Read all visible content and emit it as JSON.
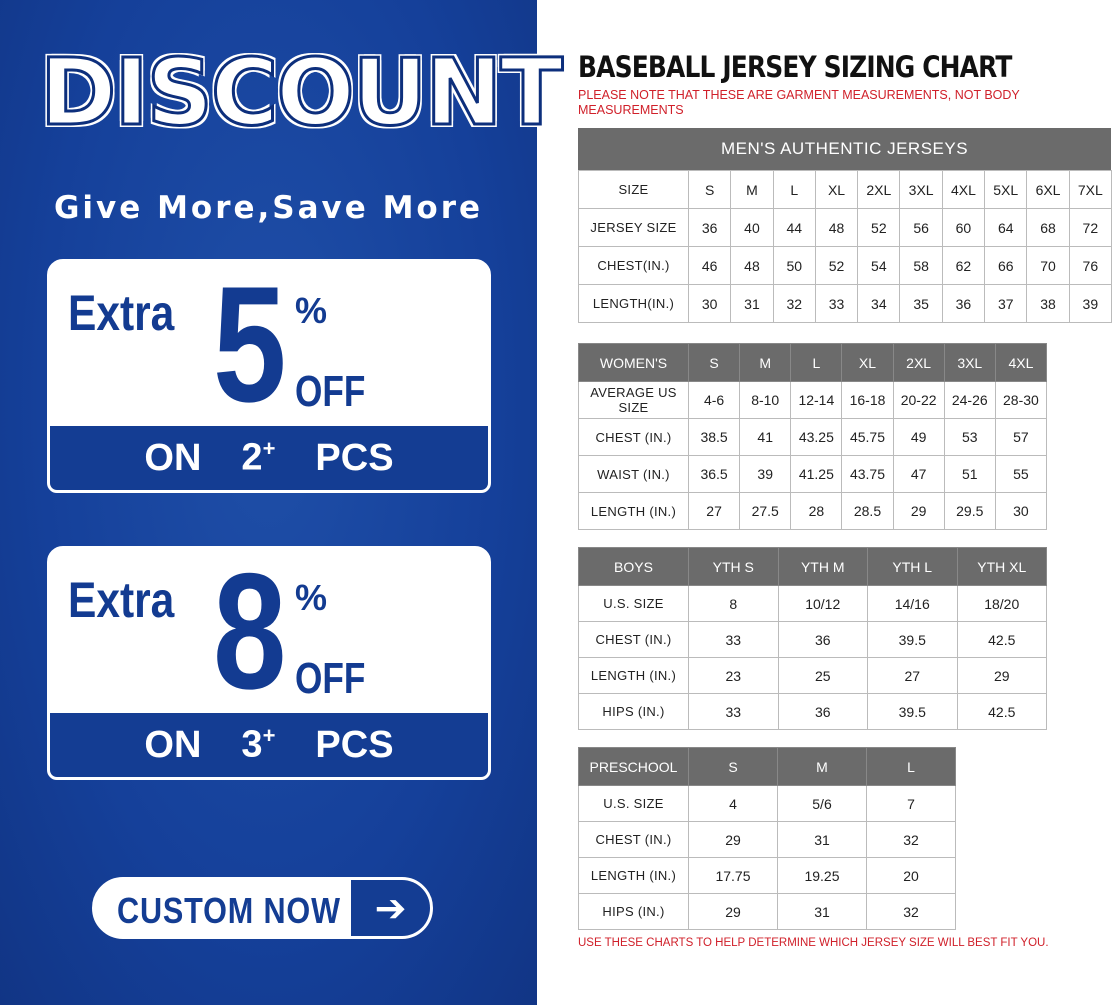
{
  "promo": {
    "title": "DISCOUNT",
    "tagline": "Give More,Save More",
    "offers": [
      {
        "extra": "Extra",
        "value": "5",
        "percent": "%",
        "off": "OFF",
        "on": "ON",
        "qty": "2",
        "plus": "+",
        "pcs": "PCS"
      },
      {
        "extra": "Extra",
        "value": "8",
        "percent": "%",
        "off": "OFF",
        "on": "ON",
        "qty": "3",
        "plus": "+",
        "pcs": "PCS"
      }
    ],
    "cta_label": "CUSTOM NOW",
    "cta_icon": "arrow-right-icon",
    "colors": {
      "brand_blue": "#143d93",
      "note_red": "#d0202a",
      "header_gray": "#6b6b6b"
    }
  },
  "chart": {
    "title": "BASEBALL JERSEY SIZING CHART",
    "note": "PLEASE NOTE THAT THESE ARE GARMENT MEASUREMENTS, NOT BODY MEASUREMENTS",
    "footer": "USE THESE CHARTS TO HELP DETERMINE WHICH JERSEY SIZE WILL BEST FIT YOU.",
    "mens": {
      "banner": "MEN'S AUTHENTIC JERSEYS",
      "header": [
        "SIZE",
        "S",
        "M",
        "L",
        "XL",
        "2XL",
        "3XL",
        "4XL",
        "5XL",
        "6XL",
        "7XL"
      ],
      "rows": [
        [
          "JERSEY SIZE",
          "36",
          "40",
          "44",
          "48",
          "52",
          "56",
          "60",
          "64",
          "68",
          "72"
        ],
        [
          "CHEST(IN.)",
          "46",
          "48",
          "50",
          "52",
          "54",
          "58",
          "62",
          "66",
          "70",
          "76"
        ],
        [
          "LENGTH(IN.)",
          "30",
          "31",
          "32",
          "33",
          "34",
          "35",
          "36",
          "37",
          "38",
          "39"
        ]
      ]
    },
    "womens": {
      "header": [
        "WOMEN'S",
        "S",
        "M",
        "L",
        "XL",
        "2XL",
        "3XL",
        "4XL"
      ],
      "rows": [
        [
          "AVERAGE US SIZE",
          "4-6",
          "8-10",
          "12-14",
          "16-18",
          "20-22",
          "24-26",
          "28-30"
        ],
        [
          "CHEST (IN.)",
          "38.5",
          "41",
          "43.25",
          "45.75",
          "49",
          "53",
          "57"
        ],
        [
          "WAIST (IN.)",
          "36.5",
          "39",
          "41.25",
          "43.75",
          "47",
          "51",
          "55"
        ],
        [
          "LENGTH (IN.)",
          "27",
          "27.5",
          "28",
          "28.5",
          "29",
          "29.5",
          "30"
        ]
      ]
    },
    "boys": {
      "header": [
        "BOYS",
        "YTH S",
        "YTH M",
        "YTH L",
        "YTH XL"
      ],
      "rows": [
        [
          "U.S. SIZE",
          "8",
          "10/12",
          "14/16",
          "18/20"
        ],
        [
          "CHEST (IN.)",
          "33",
          "36",
          "39.5",
          "42.5"
        ],
        [
          "LENGTH (IN.)",
          "23",
          "25",
          "27",
          "29"
        ],
        [
          "HIPS (IN.)",
          "33",
          "36",
          "39.5",
          "42.5"
        ]
      ]
    },
    "preschool": {
      "header": [
        "PRESCHOOL",
        "S",
        "M",
        "L"
      ],
      "rows": [
        [
          "U.S. SIZE",
          "4",
          "5/6",
          "7"
        ],
        [
          "CHEST (IN.)",
          "29",
          "31",
          "32"
        ],
        [
          "LENGTH (IN.)",
          "17.75",
          "19.25",
          "20"
        ],
        [
          "HIPS (IN.)",
          "29",
          "31",
          "32"
        ]
      ]
    }
  }
}
